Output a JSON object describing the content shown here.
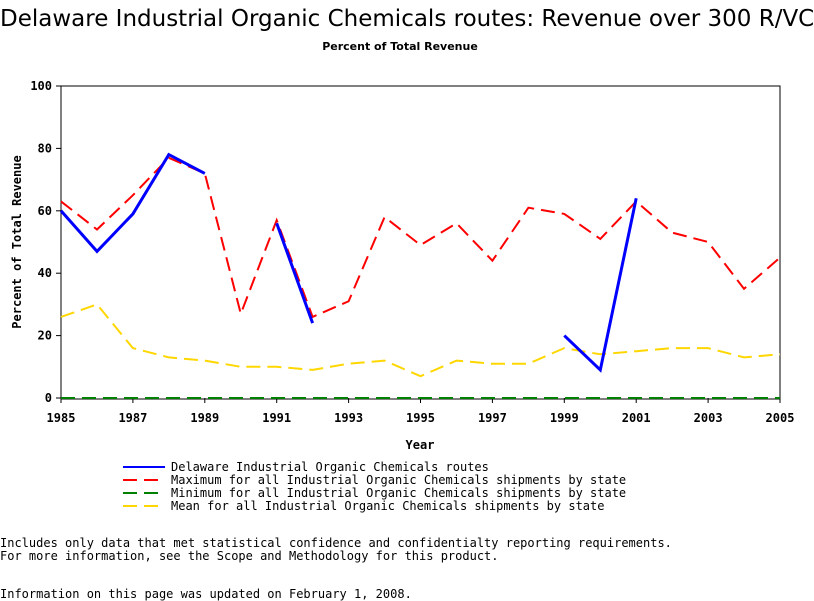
{
  "header": {
    "title": "Delaware Industrial Organic Chemicals routes: Revenue over 300 R/VC",
    "subtitle": "Percent of Total Revenue"
  },
  "chart_data": {
    "type": "line",
    "title": "Delaware Industrial Organic Chemicals routes: Revenue over 300 R/VC",
    "subtitle": "Percent of Total Revenue",
    "xlabel": "Year",
    "ylabel": "Percent of Total Revenue",
    "xlim": [
      1985,
      2005
    ],
    "ylim": [
      0,
      100
    ],
    "x_ticks": [
      "1985",
      "1987",
      "1989",
      "1991",
      "1993",
      "1995",
      "1997",
      "1999",
      "2001",
      "2003",
      "2005"
    ],
    "y_ticks": [
      "0",
      "20",
      "40",
      "60",
      "80",
      "100"
    ],
    "x": [
      1985,
      1986,
      1987,
      1988,
      1989,
      1990,
      1991,
      1992,
      1993,
      1994,
      1995,
      1996,
      1997,
      1998,
      1999,
      2000,
      2001,
      2002,
      2003,
      2004,
      2005
    ],
    "series": [
      {
        "name": "Delaware Industrial Organic Chemicals routes",
        "color": "#0000ff",
        "dash": "solid",
        "values": [
          60,
          47,
          59,
          78,
          72,
          null,
          56,
          24,
          null,
          null,
          null,
          null,
          null,
          null,
          20,
          9,
          64,
          null,
          null,
          null,
          null
        ]
      },
      {
        "name": "Maximum for all Industrial Organic Chemicals shipments by state",
        "color": "#ff0000",
        "dash": "dashed",
        "values": [
          63,
          54,
          65,
          77,
          72,
          27,
          57,
          26,
          31,
          58,
          49,
          56,
          44,
          61,
          59,
          51,
          63,
          53,
          50,
          35,
          45
        ]
      },
      {
        "name": "Minimum for all Industrial Organic Chemicals shipments by state",
        "color": "#008000",
        "dash": "dashed",
        "values": [
          0,
          0,
          0,
          0,
          0,
          0,
          0,
          0,
          0,
          0,
          0,
          0,
          0,
          0,
          0,
          0,
          0,
          0,
          0,
          0,
          0
        ]
      },
      {
        "name": "Mean for all Industrial Organic Chemicals shipments by state",
        "color": "#ffd700",
        "dash": "dashed",
        "values": [
          26,
          30,
          16,
          13,
          12,
          10,
          10,
          9,
          11,
          12,
          7,
          12,
          11,
          11,
          16,
          14,
          15,
          16,
          16,
          13,
          14
        ]
      }
    ],
    "legend_placement": "bottom",
    "grid": false
  },
  "footnotes": {
    "line1": "Includes only data that met statistical confidence and confidentialty reporting requirements.",
    "line2": "For more information, see the Scope and Methodology for this product.",
    "line3": "Information on this page was updated on February 1, 2008."
  }
}
